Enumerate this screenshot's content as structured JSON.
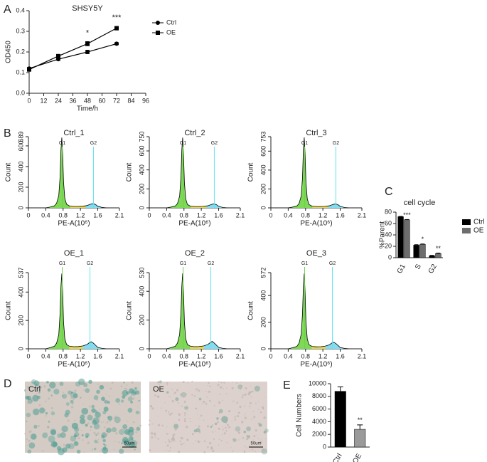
{
  "chart_data": [
    {
      "type": "line",
      "panel": "A",
      "title": "SHSY5Y",
      "xlabel": "Time/h",
      "ylabel": "OD450",
      "xlim": [
        0,
        96
      ],
      "xticks": [
        0,
        12,
        24,
        36,
        48,
        60,
        72,
        84,
        96
      ],
      "ylim": [
        0,
        0.4
      ],
      "yticks": [
        {
          "value": 0,
          "label": "0.0"
        },
        0.1,
        0.2,
        0.3,
        0.4
      ],
      "x": [
        0,
        24,
        48,
        72
      ],
      "series": [
        {
          "name": "Ctrl",
          "color": "#000000",
          "marker": "circle",
          "values": [
            0.12,
            0.165,
            0.2,
            0.24
          ],
          "errors": [
            0.005,
            0.005,
            0.008,
            0.005
          ]
        },
        {
          "name": "OE",
          "color": "#000000",
          "marker": "square",
          "values": [
            0.115,
            0.18,
            0.24,
            0.315
          ],
          "errors": [
            0.005,
            0.008,
            0.01,
            0.008
          ],
          "significance": [
            null,
            null,
            "*",
            "***"
          ]
        }
      ]
    },
    {
      "type": "area",
      "panel": "B",
      "title": "Ctrl_1",
      "xlabel": "PE-A(10⁶)",
      "ylabel": "Count",
      "gate_labels": [
        "G1",
        "G2"
      ],
      "gates": [
        0.78,
        1.5
      ],
      "xlim": [
        0,
        2.1
      ],
      "xticks": [
        0,
        0.4,
        0.8,
        1.2,
        1.6,
        2.1
      ],
      "ylim": [
        0,
        689
      ],
      "yticks": [
        0,
        200,
        400,
        600,
        689
      ],
      "x": [
        0.4,
        0.5,
        0.6,
        0.65,
        0.7,
        0.73,
        0.75,
        0.77,
        0.79,
        0.81,
        0.84,
        0.88,
        0.95,
        1.05,
        1.15,
        1.25,
        1.35,
        1.4,
        1.45,
        1.5,
        1.55,
        1.6,
        1.7,
        1.8
      ],
      "values": [
        0,
        8,
        20,
        45,
        120,
        300,
        560,
        680,
        520,
        250,
        90,
        35,
        18,
        14,
        14,
        16,
        22,
        30,
        38,
        40,
        32,
        15,
        4,
        0
      ]
    },
    {
      "type": "area",
      "title": "Ctrl_2",
      "xlabel": "PE-A(10⁶)",
      "ylabel": "Count",
      "gate_labels": [
        "G1",
        "G2"
      ],
      "gates": [
        0.78,
        1.5
      ],
      "xlim": [
        0,
        2.1
      ],
      "xticks": [
        0,
        0.4,
        0.8,
        1.2,
        1.6,
        2.1
      ],
      "ylim": [
        0,
        750
      ],
      "yticks": [
        0,
        200,
        400,
        600,
        750
      ],
      "x": [
        0.4,
        0.5,
        0.6,
        0.65,
        0.7,
        0.73,
        0.75,
        0.77,
        0.79,
        0.81,
        0.84,
        0.88,
        0.95,
        1.05,
        1.15,
        1.25,
        1.35,
        1.4,
        1.45,
        1.5,
        1.55,
        1.6,
        1.7,
        1.8
      ],
      "values": [
        0,
        8,
        20,
        45,
        125,
        320,
        610,
        740,
        560,
        270,
        95,
        36,
        18,
        14,
        14,
        16,
        22,
        30,
        38,
        42,
        33,
        16,
        4,
        0
      ]
    },
    {
      "type": "area",
      "title": "Ctrl_3",
      "xlabel": "PE-A(10⁶)",
      "ylabel": "Count",
      "gate_labels": [
        "G1",
        "G2"
      ],
      "gates": [
        0.78,
        1.5
      ],
      "xlim": [
        0,
        2.1
      ],
      "xticks": [
        0,
        0.4,
        0.8,
        1.2,
        1.6,
        2.1
      ],
      "ylim": [
        0,
        753
      ],
      "yticks": [
        0,
        200,
        400,
        600,
        753
      ],
      "x": [
        0.4,
        0.5,
        0.6,
        0.65,
        0.7,
        0.73,
        0.75,
        0.77,
        0.79,
        0.81,
        0.84,
        0.88,
        0.95,
        1.05,
        1.15,
        1.25,
        1.35,
        1.4,
        1.45,
        1.5,
        1.55,
        1.6,
        1.7,
        1.8
      ],
      "values": [
        0,
        8,
        20,
        45,
        125,
        320,
        615,
        745,
        565,
        270,
        95,
        36,
        18,
        14,
        14,
        16,
        22,
        30,
        38,
        41,
        33,
        16,
        4,
        0
      ]
    },
    {
      "type": "area",
      "title": "OE_1",
      "xlabel": "PE-A(10⁶)",
      "ylabel": "Count",
      "gate_labels": [
        "G1",
        "G2"
      ],
      "gates": [
        0.78,
        1.42
      ],
      "xlim": [
        0,
        2.1
      ],
      "xticks": [
        0,
        0.4,
        0.8,
        1.2,
        1.6,
        2.1
      ],
      "ylim": [
        0,
        537
      ],
      "yticks": [
        0,
        200,
        400,
        537
      ],
      "x": [
        0.4,
        0.5,
        0.6,
        0.65,
        0.7,
        0.73,
        0.75,
        0.77,
        0.79,
        0.81,
        0.84,
        0.88,
        0.95,
        1.05,
        1.15,
        1.25,
        1.35,
        1.4,
        1.45,
        1.5,
        1.55,
        1.6,
        1.7,
        1.8
      ],
      "values": [
        0,
        8,
        18,
        40,
        100,
        250,
        440,
        530,
        400,
        190,
        70,
        30,
        18,
        15,
        16,
        20,
        30,
        42,
        50,
        40,
        25,
        10,
        3,
        0
      ]
    },
    {
      "type": "area",
      "title": "OE_2",
      "xlabel": "PE-A(10⁶)",
      "ylabel": "Count",
      "gate_labels": [
        "G1",
        "G2"
      ],
      "gates": [
        0.78,
        1.42
      ],
      "xlim": [
        0,
        2.1
      ],
      "xticks": [
        0,
        0.4,
        0.8,
        1.2,
        1.6,
        2.1
      ],
      "ylim": [
        0,
        530
      ],
      "yticks": [
        0,
        200,
        400,
        530
      ],
      "x": [
        0.4,
        0.5,
        0.6,
        0.65,
        0.7,
        0.73,
        0.75,
        0.77,
        0.79,
        0.81,
        0.84,
        0.88,
        0.95,
        1.05,
        1.15,
        1.25,
        1.35,
        1.4,
        1.45,
        1.5,
        1.55,
        1.6,
        1.7,
        1.8
      ],
      "values": [
        0,
        8,
        18,
        40,
        100,
        245,
        435,
        525,
        395,
        188,
        70,
        30,
        18,
        15,
        16,
        20,
        30,
        42,
        52,
        40,
        25,
        10,
        3,
        0
      ]
    },
    {
      "type": "area",
      "title": "OE_3",
      "xlabel": "PE-A(10⁶)",
      "ylabel": "Count",
      "gate_labels": [
        "G1",
        "G2"
      ],
      "gates": [
        0.78,
        1.42
      ],
      "xlim": [
        0,
        2.1
      ],
      "xticks": [
        0,
        0.4,
        0.8,
        1.2,
        1.6,
        2.1
      ],
      "ylim": [
        0,
        572
      ],
      "yticks": [
        0,
        200,
        400,
        572
      ],
      "x": [
        0.4,
        0.5,
        0.6,
        0.65,
        0.7,
        0.73,
        0.75,
        0.77,
        0.79,
        0.81,
        0.84,
        0.88,
        0.95,
        1.05,
        1.15,
        1.25,
        1.35,
        1.4,
        1.45,
        1.5,
        1.55,
        1.6,
        1.7,
        1.8
      ],
      "values": [
        0,
        8,
        18,
        42,
        110,
        265,
        470,
        565,
        425,
        200,
        74,
        31,
        18,
        15,
        16,
        20,
        30,
        42,
        50,
        40,
        25,
        10,
        3,
        0
      ]
    },
    {
      "type": "bar",
      "panel": "C",
      "title": "cell cycle",
      "ylabel": "%Parent",
      "categories": [
        "G1",
        "S",
        "G2"
      ],
      "ylim": [
        0,
        80
      ],
      "yticks": [
        0,
        20,
        40,
        60,
        80
      ],
      "series": [
        {
          "name": "Ctrl",
          "color": "#000000",
          "values": [
            72,
            22,
            3.5
          ],
          "errors": [
            0.5,
            0.8,
            0.5
          ]
        },
        {
          "name": "OE",
          "color": "#6d6d6d",
          "values": [
            66.5,
            23.5,
            7.5
          ],
          "errors": [
            0.5,
            0.5,
            0.6
          ],
          "significance": [
            "***",
            "*",
            "**"
          ]
        }
      ]
    },
    {
      "type": "bar",
      "panel": "E",
      "ylabel": "Cell Numbers",
      "categories": [
        "Ctrl",
        "OE"
      ],
      "ylim": [
        0,
        10000
      ],
      "yticks": [
        0,
        2000,
        4000,
        6000,
        8000,
        10000
      ],
      "series": [
        {
          "colors": [
            "#000000",
            "#9a9a9a"
          ],
          "values": [
            8800,
            2800
          ],
          "errors": [
            700,
            700
          ],
          "significance": [
            null,
            "**"
          ]
        }
      ]
    }
  ],
  "images": {
    "panel": "D",
    "labels": [
      "Ctrl",
      "OE"
    ],
    "scale_bars": [
      "50um",
      "50um"
    ]
  }
}
